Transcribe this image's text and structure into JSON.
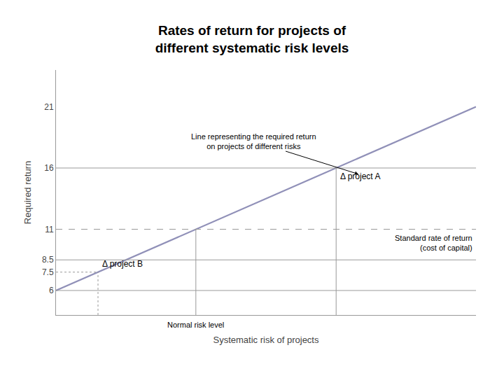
{
  "chart_data": {
    "type": "line",
    "title": "Rates of return for projects of\ndifferent systematic risk levels",
    "x_label": "Systematic risk of projects",
    "y_label": "Required return",
    "xlim": [
      0,
      10
    ],
    "ylim": [
      4,
      24
    ],
    "yticks": [
      6,
      7.5,
      8.5,
      11,
      16,
      21
    ],
    "tick_labels": "y",
    "grid": false,
    "series": [
      {
        "x": [
          0,
          10
        ],
        "values": [
          6,
          21
        ],
        "color": "#9090b8",
        "line_style": "solid"
      },
      {
        "x": [
          0,
          10
        ],
        "values": [
          6,
          6
        ],
        "color": "#999999",
        "line_style": "solid"
      },
      {
        "x": [
          0,
          10
        ],
        "values": [
          8.5,
          8.5
        ],
        "color": "#999999",
        "line_style": "solid"
      },
      {
        "x": [
          0,
          10
        ],
        "values": [
          16,
          16
        ],
        "color": "#999999",
        "line_style": "solid"
      },
      {
        "x": [
          0,
          10
        ],
        "values": [
          11,
          11
        ],
        "color": "#999999",
        "line_style": "dashed"
      },
      {
        "x": [
          0,
          1
        ],
        "values": [
          7.5,
          7.5
        ],
        "color": "#999999",
        "line_style": "dotted"
      },
      {
        "x": [
          3.33,
          3.33
        ],
        "values": [
          4,
          11
        ],
        "color": "#999999",
        "line_style": "solid"
      },
      {
        "x": [
          6.67,
          6.67
        ],
        "values": [
          4,
          16
        ],
        "color": "#999999",
        "line_style": "solid"
      },
      {
        "x": [
          1,
          1
        ],
        "values": [
          4,
          7.5
        ],
        "color": "#999999",
        "line_style": "dotted"
      }
    ],
    "annotations": [
      {
        "text": "Line representing the required return\non projects of different risks",
        "x": 7.2,
        "y": 15.5,
        "text_x": 4.7,
        "text_y": 18.2
      },
      {
        "text": "Δ project A",
        "x": 6.67,
        "y": 16
      },
      {
        "text": "Δ project B",
        "x": 1,
        "y": 7.5
      },
      {
        "text": "Standard rate of return\n(cost of capital)",
        "x": 10,
        "y": 11
      },
      {
        "text": "Normal risk level",
        "x": 3.33,
        "y": 4
      }
    ]
  }
}
